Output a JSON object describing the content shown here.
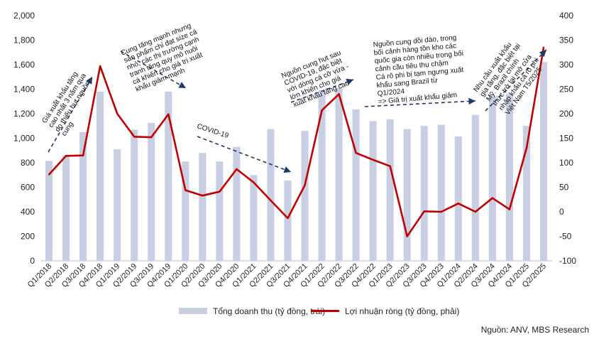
{
  "chart_data": {
    "type": "bar",
    "categories": [
      "Q1/2018",
      "Q2/2018",
      "Q3/2018",
      "Q4/2018",
      "Q1/2019",
      "Q2/2019",
      "Q3/2019",
      "Q4/2019",
      "Q1/2020",
      "Q2/2020",
      "Q3/2020",
      "Q4/2020",
      "Q1/2021",
      "Q2/2021",
      "Q3/2021",
      "Q4/2021",
      "Q1/2022",
      "Q2/2022",
      "Q3/2022",
      "Q4/2022",
      "Q1/2023",
      "Q2/2023",
      "Q3/2023",
      "Q4/2023",
      "Q1/2024",
      "Q2/2024",
      "Q3/2024",
      "Q4/2024",
      "Q1/2025",
      "Q2/2025"
    ],
    "series": [
      {
        "name": "Tổng doanh thu (tỷ đồng, trái)",
        "type": "bar",
        "axis": "left",
        "color": "#c9cfe3",
        "values": [
          815,
          860,
          1050,
          1380,
          910,
          1070,
          1125,
          1380,
          810,
          880,
          810,
          930,
          700,
          1075,
          655,
          1060,
          1390,
          1410,
          1235,
          1140,
          1155,
          1075,
          1100,
          1110,
          1015,
          1190,
          1340,
          1360,
          1100,
          1620
        ]
      },
      {
        "name": "Lợi nhuận ròng (tỷ đồng, phải)",
        "type": "line",
        "axis": "right",
        "color": "#c00000",
        "values": [
          76,
          114,
          115,
          297,
          200,
          153,
          152,
          199,
          44,
          33,
          41,
          87,
          60,
          23,
          -13,
          54,
          207,
          240,
          120,
          106,
          93,
          -50,
          1,
          0,
          17,
          0,
          28,
          5,
          130,
          335
        ]
      }
    ],
    "ylim_left": [
      0,
      2000
    ],
    "ylim_right": [
      -100,
      400
    ],
    "yticks_left": [
      "0",
      "200",
      "400",
      "600",
      "800",
      "1,000",
      "1,200",
      "1,400",
      "1,600",
      "1,800",
      "2,000"
    ],
    "yticks_right": [
      "-100",
      "-50",
      "0",
      "50",
      "100",
      "150",
      "200",
      "250",
      "300",
      "350",
      "400"
    ],
    "legend_position": "bottom",
    "annotations": [
      {
        "id": "a1",
        "lines": [
          "Giá xuất khẩu tăng",
          "cao nhất 3 năm qua",
          "do thiếu hụt nguồn",
          "cung"
        ]
      },
      {
        "id": "a2",
        "lines": [
          "Cung tăng mạnh nhưng",
          "sản phẩm chỉ đạt size cá",
          "nhỏ, các thị trường cạnh",
          "tranh tăng quy mô nuôi",
          "cá khiến cho giá trị xuất",
          "khẩu giảm mạnh"
        ]
      },
      {
        "id": "a3",
        "lines": [
          "COVID-19"
        ]
      },
      {
        "id": "a4",
        "lines": [
          "Nguồn cung hụt sau",
          "COVID-19, đặc biệt",
          "với dòng cá cỡ vừa -",
          "lớn khiến cho giá",
          "xuất khẩu tăng cao"
        ]
      },
      {
        "id": "a5",
        "lines": [
          "Nguồn cung dồi dào, trong",
          "bối cảnh hàng tồn kho các",
          "quốc gia còn nhiều trong bối",
          "cảnh cầu tiêu thụ chậm",
          "Cá rô phi bị tạm ngưng xuất",
          "khẩu sang Brazil từ",
          "Q1/2024",
          "=> Giá trị xuất khẩu giảm"
        ]
      },
      {
        "id": "a6",
        "lines": [
          "Nhu cầu xuất khẩu",
          "gia tăng, đặc biệt tại",
          "Mỹ. Brazil chính",
          "thức trở lại mở cửa",
          "nhập khẩu cá rô phi",
          "Việt Nam T5/2025"
        ]
      }
    ]
  },
  "source": "Nguồn: ANV, MBS Research"
}
